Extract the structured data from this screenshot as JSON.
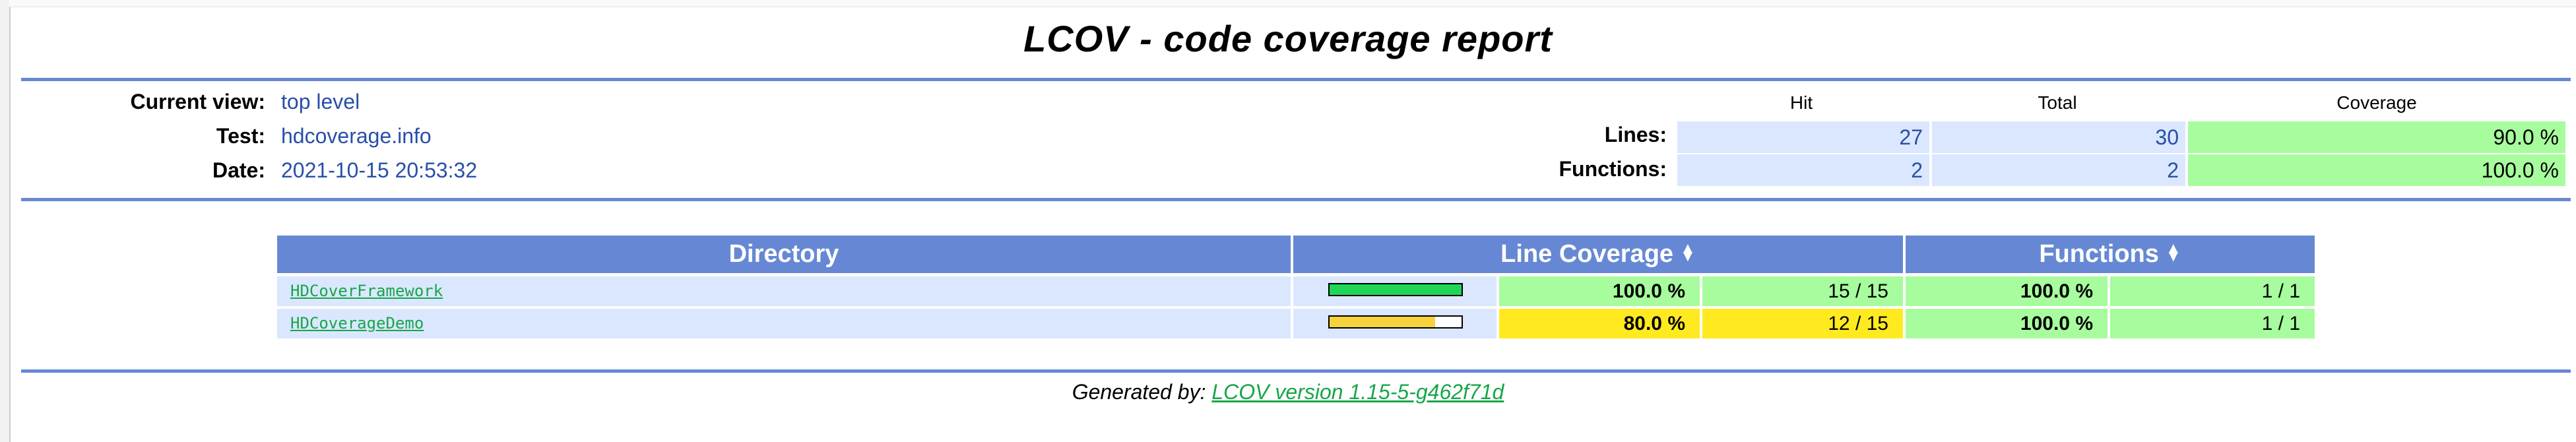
{
  "title": "LCOV - code coverage report",
  "info": {
    "current_view_label": "Current view:",
    "current_view_value": "top level",
    "test_label": "Test:",
    "test_value": "hdcoverage.info",
    "date_label": "Date:",
    "date_value": "2021-10-15 20:53:32"
  },
  "summary": {
    "headers": {
      "hit": "Hit",
      "total": "Total",
      "coverage": "Coverage"
    },
    "lines": {
      "label": "Lines:",
      "hit": "27",
      "total": "30",
      "coverage": "90.0 %"
    },
    "functions": {
      "label": "Functions:",
      "hit": "2",
      "total": "2",
      "coverage": "100.0 %"
    }
  },
  "table": {
    "headers": {
      "directory": "Directory",
      "line_coverage": "Line Coverage",
      "functions": "Functions"
    },
    "rows": [
      {
        "name": "HDCoverFramework",
        "line_pct": "100.0 %",
        "line_count": "15 / 15",
        "func_pct": "100.0 %",
        "func_count": "1 / 1",
        "bar_fraction": 1.0,
        "bar_color": "#1fd656"
      },
      {
        "name": "HDCoverageDemo",
        "line_pct": "80.0 %",
        "line_count": "12 / 15",
        "func_pct": "100.0 %",
        "func_count": "1 / 1",
        "bar_fraction": 0.8,
        "bar_color": "#f7d23a"
      }
    ]
  },
  "footer": {
    "generated_by": "Generated by:",
    "link_text": "LCOV version 1.15-5-g462f71d"
  }
}
